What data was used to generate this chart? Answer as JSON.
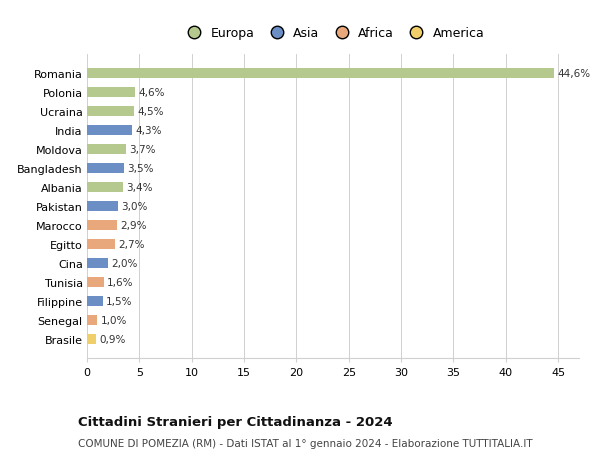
{
  "countries": [
    "Romania",
    "Polonia",
    "Ucraina",
    "India",
    "Moldova",
    "Bangladesh",
    "Albania",
    "Pakistan",
    "Marocco",
    "Egitto",
    "Cina",
    "Tunisia",
    "Filippine",
    "Senegal",
    "Brasile"
  ],
  "values": [
    44.6,
    4.6,
    4.5,
    4.3,
    3.7,
    3.5,
    3.4,
    3.0,
    2.9,
    2.7,
    2.0,
    1.6,
    1.5,
    1.0,
    0.9
  ],
  "labels": [
    "44,6%",
    "4,6%",
    "4,5%",
    "4,3%",
    "3,7%",
    "3,5%",
    "3,4%",
    "3,0%",
    "2,9%",
    "2,7%",
    "2,0%",
    "1,6%",
    "1,5%",
    "1,0%",
    "0,9%"
  ],
  "continents": [
    "Europa",
    "Europa",
    "Europa",
    "Asia",
    "Europa",
    "Asia",
    "Europa",
    "Asia",
    "Africa",
    "Africa",
    "Asia",
    "Africa",
    "Asia",
    "Africa",
    "America"
  ],
  "colors": {
    "Europa": "#b5c98e",
    "Asia": "#6b8ec4",
    "Africa": "#e8a87c",
    "America": "#f0cf6a"
  },
  "title": "Cittadini Stranieri per Cittadinanza - 2024",
  "subtitle": "COMUNE DI POMEZIA (RM) - Dati ISTAT al 1° gennaio 2024 - Elaborazione TUTTITALIA.IT",
  "xlim": [
    0,
    47
  ],
  "xticks": [
    0,
    5,
    10,
    15,
    20,
    25,
    30,
    35,
    40,
    45
  ],
  "background_color": "#ffffff",
  "grid_color": "#d0d0d0",
  "legend_order": [
    "Europa",
    "Asia",
    "Africa",
    "America"
  ]
}
